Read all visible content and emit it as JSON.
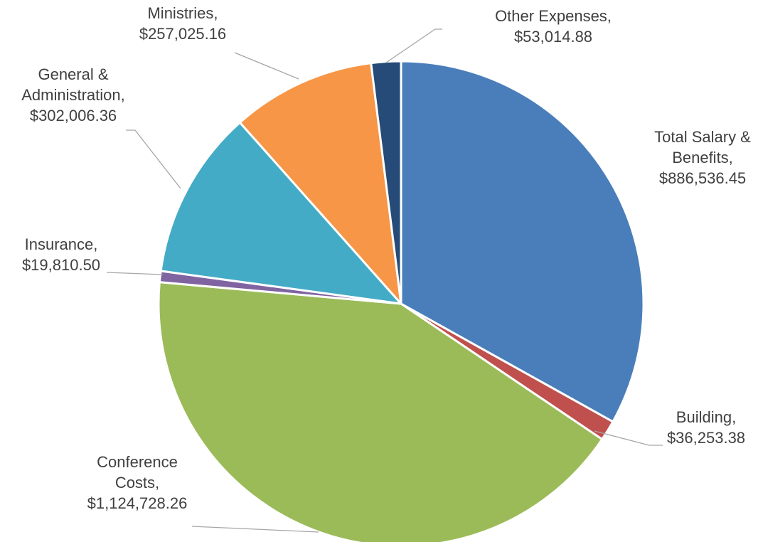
{
  "chart_data": {
    "type": "pie",
    "title": "",
    "grid": false,
    "legend": "none",
    "start": "12 o'clock",
    "direction": "clockwise",
    "slices": [
      {
        "name": "Total Salary & Benefits",
        "value": 886536.45,
        "label_lines": [
          "Total Salary &",
          "Benefits,",
          "$886,536.45"
        ],
        "color": "#4a7ebb"
      },
      {
        "name": "Building",
        "value": 36253.38,
        "label_lines": [
          "Building,",
          "$36,253.38"
        ],
        "color": "#c0504d"
      },
      {
        "name": "Conference Costs",
        "value": 1124728.26,
        "label_lines": [
          "Conference",
          "Costs,",
          "$1,124,728.26"
        ],
        "color": "#9bbb59"
      },
      {
        "name": "Insurance",
        "value": 19810.5,
        "label_lines": [
          "Insurance,",
          "$19,810.50"
        ],
        "color": "#8064a2"
      },
      {
        "name": "General & Administration",
        "value": 302006.36,
        "label_lines": [
          "General &",
          "Administration,",
          "$302,006.36"
        ],
        "color": "#43abc6"
      },
      {
        "name": "Ministries",
        "value": 257025.16,
        "label_lines": [
          "Ministries,",
          "$257,025.16"
        ],
        "color": "#f79646"
      },
      {
        "name": "Other Expenses",
        "value": 53014.88,
        "label_lines": [
          "Other Expenses,",
          "$53,014.88"
        ],
        "color": "#264b78"
      }
    ]
  }
}
